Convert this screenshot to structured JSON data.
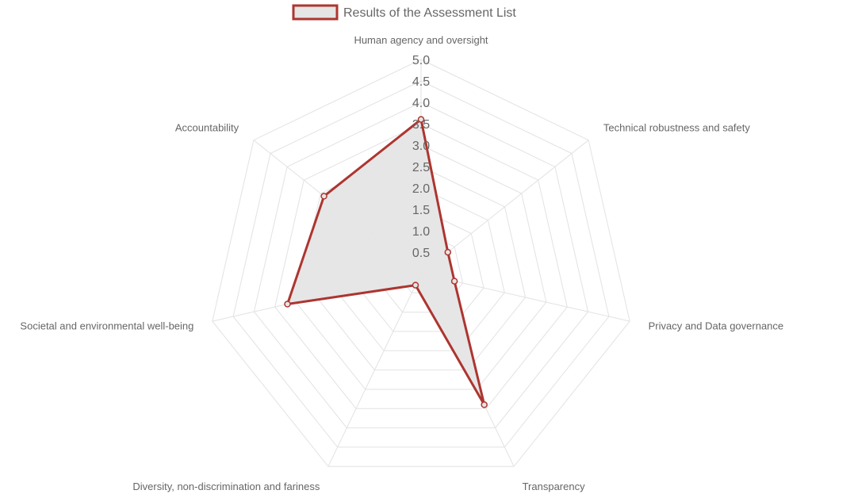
{
  "chart_data": {
    "type": "radar",
    "max": 5,
    "step": 0.5,
    "ticks": [
      "0.5",
      "1.0",
      "1.5",
      "2.0",
      "2.5",
      "3.0",
      "3.5",
      "4.0",
      "4.5",
      "5.0"
    ],
    "axes": [
      "Human agency and oversight",
      "Technical robustness and safety",
      "Privacy and Data governance",
      "Transparency",
      "Diversity, non-discrimination and fariness",
      "Societal and environmental well-being",
      "Accountability"
    ],
    "series": [
      {
        "name": "Results of the Assessment List",
        "values": [
          3.6,
          0.8,
          0.8,
          3.4,
          0.3,
          3.2,
          2.9
        ],
        "color": "#ad3530",
        "fill": "#e5e5e5"
      }
    ],
    "legend": "top"
  }
}
